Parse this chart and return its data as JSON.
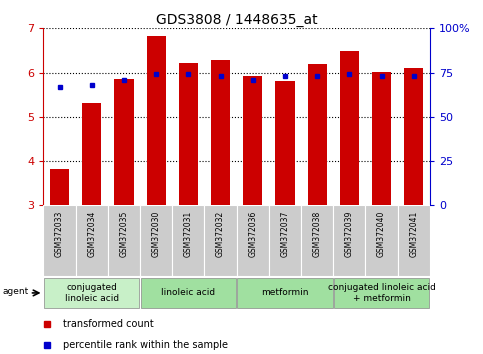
{
  "title": "GDS3808 / 1448635_at",
  "samples": [
    "GSM372033",
    "GSM372034",
    "GSM372035",
    "GSM372030",
    "GSM372031",
    "GSM372032",
    "GSM372036",
    "GSM372037",
    "GSM372038",
    "GSM372039",
    "GSM372040",
    "GSM372041"
  ],
  "transformed_count": [
    3.82,
    5.32,
    5.85,
    6.82,
    6.22,
    6.28,
    5.92,
    5.82,
    6.2,
    6.48,
    6.02,
    6.1
  ],
  "percentile_rank": [
    67,
    68,
    71,
    74,
    74,
    73,
    71,
    73,
    73,
    74,
    73,
    73
  ],
  "ylim_left": [
    3,
    7
  ],
  "ylim_right": [
    0,
    100
  ],
  "yticks_left": [
    3,
    4,
    5,
    6,
    7
  ],
  "yticks_right": [
    0,
    25,
    50,
    75,
    100
  ],
  "bar_color": "#cc0000",
  "dot_color": "#0000cc",
  "agent_groups": [
    {
      "label": "conjugated\nlinoleic acid",
      "start": 0,
      "end": 3,
      "color": "#c8f0c8"
    },
    {
      "label": "linoleic acid",
      "start": 3,
      "end": 6,
      "color": "#a0e0a0"
    },
    {
      "label": "metformin",
      "start": 6,
      "end": 9,
      "color": "#a0e0a0"
    },
    {
      "label": "conjugated linoleic acid\n+ metformin",
      "start": 9,
      "end": 12,
      "color": "#a0e0a0"
    }
  ],
  "legend_labels": [
    "transformed count",
    "percentile rank within the sample"
  ],
  "legend_colors": [
    "#cc0000",
    "#0000cc"
  ],
  "agent_label": "agent",
  "sample_bg_color": "#cccccc",
  "bar_width": 0.6,
  "title_fontsize": 10,
  "axis_fontsize": 8,
  "sample_fontsize": 5.5,
  "group_fontsize": 6.5,
  "legend_fontsize": 7
}
